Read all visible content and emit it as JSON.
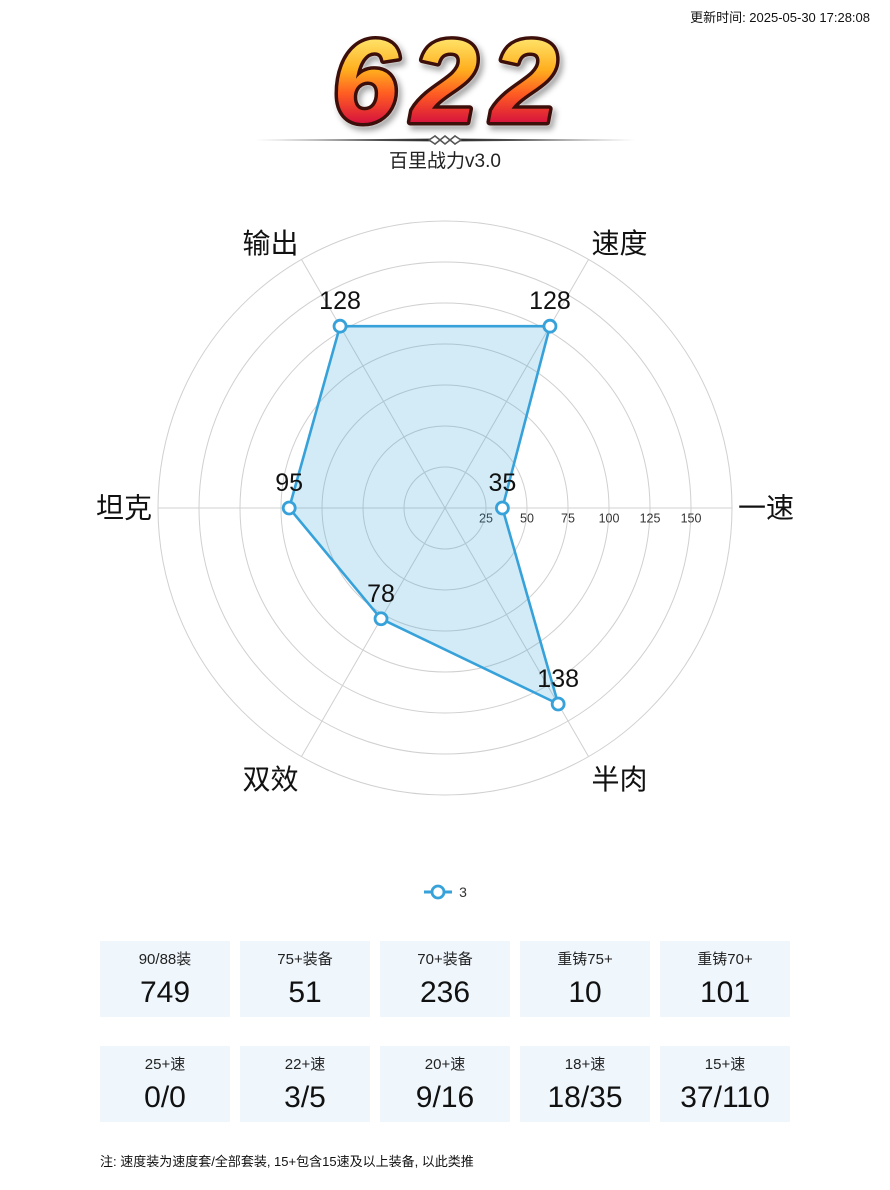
{
  "updated": "更新时间: 2025-05-30 17:28:08",
  "header": {
    "score": "622",
    "subtitle": "百里战力v3.0"
  },
  "chart_data": {
    "type": "radar",
    "categories": [
      "一速",
      "速度",
      "输出",
      "坦克",
      "双效",
      "半肉"
    ],
    "series": [
      {
        "name": "3",
        "values": [
          35,
          128,
          128,
          95,
          78,
          138
        ]
      }
    ],
    "ticks": [
      25,
      50,
      75,
      100,
      125,
      150
    ],
    "rlim": [
      0,
      175
    ],
    "grid": true,
    "legend": "bottom",
    "colors": {
      "series": "#37a2da",
      "grid": "#d0d0d0"
    }
  },
  "stats": {
    "equipment": [
      {
        "label": "90/88装",
        "value": "749"
      },
      {
        "label": "75+装备",
        "value": "51"
      },
      {
        "label": "70+装备",
        "value": "236"
      },
      {
        "label": "重铸75+",
        "value": "10"
      },
      {
        "label": "重铸70+",
        "value": "101"
      }
    ],
    "speed": [
      {
        "label": "25+速",
        "value": "0/0"
      },
      {
        "label": "22+速",
        "value": "3/5"
      },
      {
        "label": "20+速",
        "value": "9/16"
      },
      {
        "label": "18+速",
        "value": "18/35"
      },
      {
        "label": "15+速",
        "value": "37/110"
      }
    ]
  },
  "note": "注: 速度装为速度套/全部套装, 15+包含15速及以上装备, 以此类推"
}
